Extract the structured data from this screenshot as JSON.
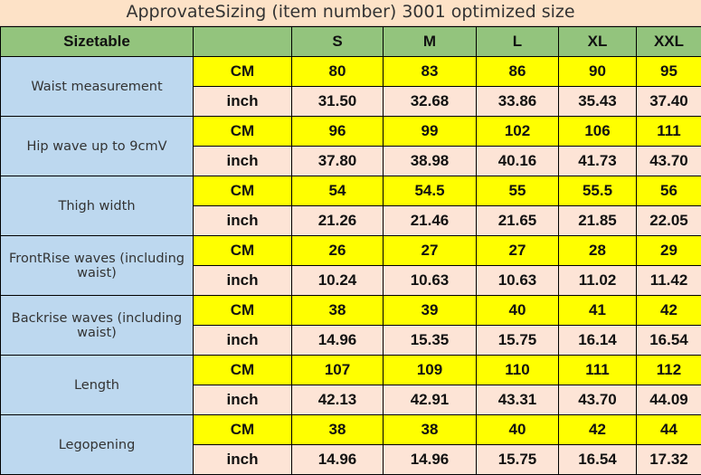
{
  "title": "ApprovateSizing (item number) 3001 optimized size",
  "header": {
    "corner": "Sizetable",
    "blank": "",
    "sizes": [
      "S",
      "M",
      "L",
      "XL",
      "XXL"
    ]
  },
  "rows": [
    {
      "label": "Waist measurement",
      "cm": [
        "80",
        "83",
        "86",
        "90",
        "95"
      ],
      "inch": [
        "31.50",
        "32.68",
        "33.86",
        "35.43",
        "37.40"
      ]
    },
    {
      "label": "Hip wave up to 9cmV",
      "cm": [
        "96",
        "99",
        "102",
        "106",
        "111"
      ],
      "inch": [
        "37.80",
        "38.98",
        "40.16",
        "41.73",
        "43.70"
      ]
    },
    {
      "label": "Thigh width",
      "cm": [
        "54",
        "54.5",
        "55",
        "55.5",
        "56"
      ],
      "inch": [
        "21.26",
        "21.46",
        "21.65",
        "21.85",
        "22.05"
      ]
    },
    {
      "label": "FrontRise waves (including waist)",
      "cm": [
        "26",
        "27",
        "27",
        "28",
        "29"
      ],
      "inch": [
        "10.24",
        "10.63",
        "10.63",
        "11.02",
        "11.42"
      ]
    },
    {
      "label": "Backrise waves (including waist)",
      "cm": [
        "38",
        "39",
        "40",
        "41",
        "42"
      ],
      "inch": [
        "14.96",
        "15.35",
        "15.75",
        "16.14",
        "16.54"
      ]
    },
    {
      "label": "Length",
      "cm": [
        "107",
        "109",
        "110",
        "111",
        "112"
      ],
      "inch": [
        "42.13",
        "42.91",
        "43.31",
        "43.70",
        "44.09"
      ]
    },
    {
      "label": "Legopening",
      "cm": [
        "38",
        "38",
        "40",
        "42",
        "44"
      ],
      "inch": [
        "14.96",
        "14.96",
        "15.75",
        "16.54",
        "17.32"
      ]
    }
  ],
  "units": {
    "cm": "CM",
    "inch": "inch"
  },
  "colors": {
    "title_bg": "#fde2c7",
    "header_bg": "#93c47d",
    "label_bg": "#bdd8ef",
    "cm_row_bg": "#ffff00",
    "inch_row_bg": "#fde4d6"
  }
}
